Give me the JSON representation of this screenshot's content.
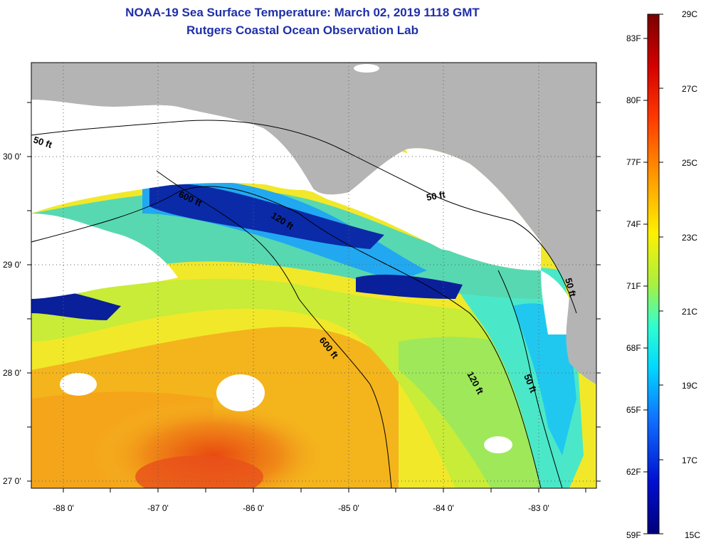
{
  "header": {
    "title": "NOAA-19 Sea Surface Temperature:  March 02, 2019 1118 GMT",
    "subtitle": "Rutgers Coastal Ocean Observation Lab"
  },
  "map": {
    "lat_labels": [
      "30 0'",
      "29 0'",
      "28 0'",
      "27 0'"
    ],
    "lon_labels": [
      "-88 0'",
      "-87 0'",
      "-86 0'",
      "-85 0'",
      "-84 0'",
      "-83 0'"
    ],
    "contour_labels": [
      "50 ft",
      "600 ft",
      "120 ft",
      "50 ft",
      "600 ft",
      "120 ft",
      "50 ft",
      "50 ft"
    ],
    "colors": {
      "land": "#b4b4b4",
      "cloud": "#ffffff",
      "cold": "#0a1f9a",
      "warm": "#e85b12"
    }
  },
  "colorbar": {
    "celsius": [
      "29C",
      "27C",
      "25C",
      "23C",
      "21C",
      "19C",
      "17C",
      "15C"
    ],
    "fahrenheit": [
      "83F",
      "80F",
      "77F",
      "74F",
      "71F",
      "68F",
      "65F",
      "62F",
      "59F"
    ],
    "range_c": [
      15,
      29
    ],
    "range_f": [
      59,
      83
    ]
  }
}
